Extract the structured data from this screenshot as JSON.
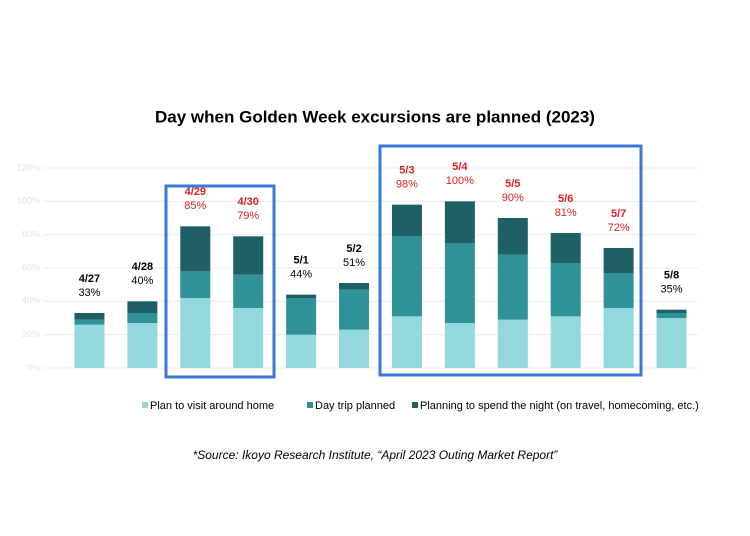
{
  "chart_data": {
    "type": "stacked_bar",
    "title": "Day when Golden Week excursions are planned (2023)",
    "categories": [
      "4/27",
      "4/28",
      "4/29",
      "4/30",
      "5/1",
      "5/2",
      "5/3",
      "5/4",
      "5/5",
      "5/6",
      "5/7",
      "5/8"
    ],
    "series": [
      {
        "name": "Plan to visit around home",
        "color": "#93d8dc",
        "values": [
          26,
          27,
          42,
          36,
          20,
          23,
          31,
          27,
          29,
          31,
          36,
          30
        ]
      },
      {
        "name": "Day trip planned",
        "color": "#2e9298",
        "values": [
          3,
          6,
          16,
          20,
          22,
          24,
          48,
          48,
          39,
          32,
          21,
          3
        ]
      },
      {
        "name": "Planning to spend the night (on travel, homecoming, etc.)",
        "color": "#1f5f66",
        "values": [
          4,
          7,
          27,
          23,
          2,
          4,
          19,
          25,
          22,
          18,
          15,
          2
        ]
      }
    ],
    "totals": [
      33,
      40,
      85,
      79,
      44,
      51,
      98,
      100,
      90,
      81,
      72,
      35
    ],
    "total_labels": [
      "33%",
      "40%",
      "85%",
      "79%",
      "44%",
      "51%",
      "98%",
      "100%",
      "90%",
      "81%",
      "72%",
      "35%"
    ],
    "highlighted": [
      false,
      false,
      true,
      true,
      false,
      false,
      true,
      true,
      true,
      true,
      true,
      false
    ],
    "highlight_color": "#e02020",
    "ylim": [
      0,
      120
    ],
    "yticks": [
      {
        "value": 0,
        "label": "0%"
      },
      {
        "value": 20,
        "label": "20%"
      },
      {
        "value": 40,
        "label": "40%"
      },
      {
        "value": 60,
        "label": "60%"
      },
      {
        "value": 80,
        "label": "80%"
      },
      {
        "value": 100,
        "label": "100%"
      },
      {
        "value": 120,
        "label": "120%"
      }
    ],
    "grid": true,
    "source": "*Source: Ikoyo Research Institute, “April 2023 Outing Market Report”"
  }
}
